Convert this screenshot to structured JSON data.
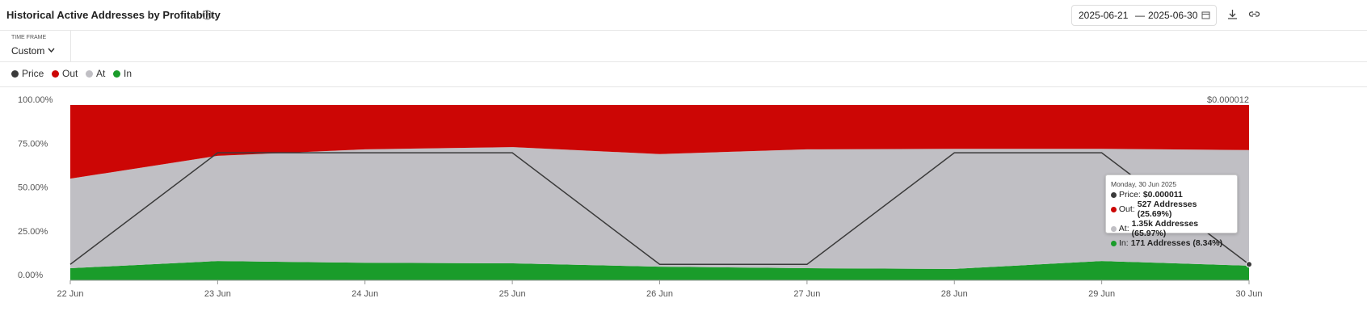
{
  "header": {
    "title": "Historical Active Addresses by Profitability",
    "date_from": "2025-06-21",
    "date_sep": "—",
    "date_to": "2025-06-30",
    "time_frame_label": "TIME FRAME",
    "time_frame": "Custom"
  },
  "chart_data": {
    "type": "stacked-area",
    "categories": [
      "22 Jun",
      "23 Jun",
      "24 Jun",
      "25 Jun",
      "26 Jun",
      "27 Jun",
      "28 Jun",
      "29 Jun",
      "30 Jun"
    ],
    "series": [
      {
        "name": "Price",
        "color": "#3a3a3a",
        "type": "line",
        "axis": "y2",
        "values": [
          1.1e-05,
          1.17e-05,
          1.17e-05,
          1.17e-05,
          1.1e-05,
          1.1e-05,
          1.17e-05,
          1.17e-05,
          1.1e-05
        ]
      },
      {
        "name": "Out",
        "color": "#cc0605",
        "values": [
          42,
          29,
          25.3,
          24,
          28,
          25.3,
          25,
          25,
          25.69
        ]
      },
      {
        "name": "At",
        "color": "#c0bfc4",
        "values": [
          51.1,
          60,
          64.7,
          66.3,
          64.2,
          67.8,
          68.5,
          64,
          65.97
        ]
      },
      {
        "name": "In",
        "color": "#1a9c2a",
        "values": [
          6.9,
          11,
          10,
          9.7,
          7.8,
          6.9,
          6.5,
          11,
          8.34
        ]
      }
    ],
    "ylim": [
      0,
      100
    ],
    "yticks": [
      {
        "value": 0,
        "label": "0.00%"
      },
      {
        "value": 25,
        "label": "25.00%"
      },
      {
        "value": 50,
        "label": "50.00%"
      },
      {
        "value": 75,
        "label": "75.00%"
      },
      {
        "value": 100,
        "label": "100.00%"
      }
    ],
    "y2lim": [
      1.09e-05,
      1.2e-05
    ],
    "y2ticks": [
      {
        "value": 1.2e-05,
        "label": "$0.000012"
      }
    ],
    "grid": true,
    "tooltip": {
      "date": "Monday, 30 Jun 2025",
      "rows": [
        {
          "label": "Price:",
          "value": "$0.000011"
        },
        {
          "label": "Out:",
          "value": "527 Addresses (25.69%)"
        },
        {
          "label": "At:",
          "value": "1.35k Addresses (65.97%)"
        },
        {
          "label": "In:",
          "value": "171 Addresses (8.34%)"
        }
      ]
    }
  }
}
